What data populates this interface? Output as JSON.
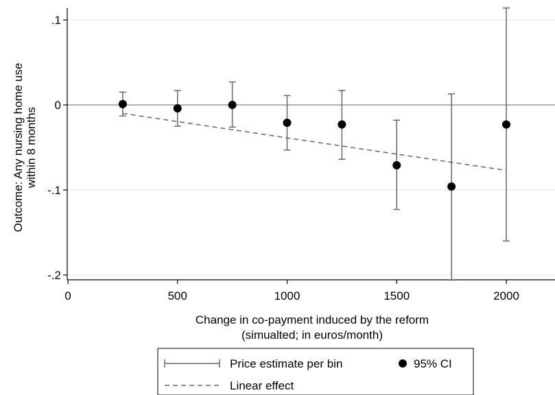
{
  "chart_data": {
    "type": "scatter",
    "xlabel": [
      "Change in co-payment induced by the reform",
      "(simualted; in euros/month)"
    ],
    "ylabel": [
      "Outcome: Any nursing home use",
      "within 8 months"
    ],
    "xlim": [
      0,
      2250
    ],
    "ylim": [
      -0.205,
      0.115
    ],
    "x_ticks": [
      0,
      500,
      1000,
      1500,
      2000
    ],
    "x_tick_labels": [
      "0",
      "500",
      "1000",
      "1500",
      "2000"
    ],
    "y_ticks": [
      0.1,
      0,
      -0.1,
      -0.2
    ],
    "y_tick_labels": [
      ".1",
      "0",
      "-.1",
      "-.2"
    ],
    "points": [
      {
        "x": 250,
        "y": 0.001,
        "ci_low": -0.013,
        "ci_high": 0.015
      },
      {
        "x": 500,
        "y": -0.004,
        "ci_low": -0.025,
        "ci_high": 0.017
      },
      {
        "x": 750,
        "y": 0.0,
        "ci_low": -0.026,
        "ci_high": 0.027
      },
      {
        "x": 1000,
        "y": -0.021,
        "ci_low": -0.053,
        "ci_high": 0.011
      },
      {
        "x": 1250,
        "y": -0.023,
        "ci_low": -0.064,
        "ci_high": 0.017
      },
      {
        "x": 1500,
        "y": -0.071,
        "ci_low": -0.123,
        "ci_high": -0.018
      },
      {
        "x": 1750,
        "y": -0.096,
        "ci_low": -0.206,
        "ci_high": 0.013
      },
      {
        "x": 2000,
        "y": -0.023,
        "ci_low": -0.16,
        "ci_high": 0.114
      }
    ],
    "linear_effect": {
      "x": [
        250,
        2000
      ],
      "y": [
        -0.01,
        -0.077
      ]
    },
    "zero_line": 0,
    "grid": true,
    "legend": {
      "placement": "bottom",
      "entries": [
        {
          "label": "Price estimate per bin",
          "symbol": "capped-line"
        },
        {
          "label": "95% CI",
          "symbol": "dot"
        },
        {
          "label": "Linear effect",
          "symbol": "dashed-line"
        }
      ]
    },
    "colors": {
      "marker": "#000000",
      "ci": "#666666",
      "zero": "#999999",
      "grid": "#e8eef2",
      "axis": "#000000"
    }
  }
}
